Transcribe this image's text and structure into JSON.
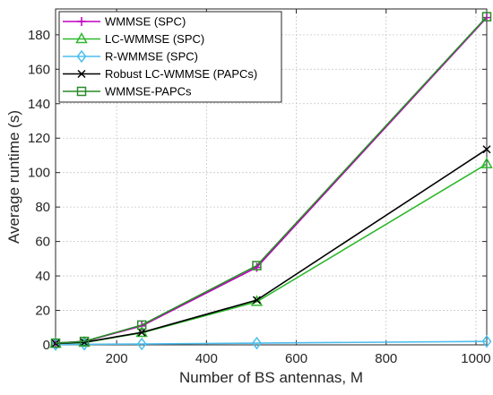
{
  "chart_data": {
    "type": "line",
    "title": "",
    "xlabel": "Number of BS antennas, M",
    "ylabel": "Average runtime (s)",
    "xlim": [
      64,
      1024
    ],
    "ylim": [
      0,
      195
    ],
    "xticks": [
      200,
      400,
      600,
      800,
      1000
    ],
    "yticks": [
      0,
      20,
      40,
      60,
      80,
      100,
      120,
      140,
      160,
      180
    ],
    "grid": true,
    "legend_position": "top-left",
    "x": [
      64,
      128,
      256,
      512,
      1024
    ],
    "series": [
      {
        "name": "WMMSE (SPC)",
        "color": "#c000c0",
        "marker": "plus",
        "values": [
          1.0,
          2.0,
          11.0,
          45.0,
          190.0
        ]
      },
      {
        "name": "LC-WMMSE (SPC)",
        "color": "#2eb82e",
        "marker": "triangle",
        "values": [
          0.7,
          1.3,
          7.0,
          25.0,
          105.0
        ]
      },
      {
        "name": "R-WMMSE (SPC)",
        "color": "#4dbeee",
        "marker": "diamond",
        "values": [
          0.2,
          0.3,
          0.5,
          1.0,
          2.0
        ]
      },
      {
        "name": "Robust LC-WMMSE (PAPCs)",
        "color": "#000000",
        "marker": "x",
        "values": [
          0.8,
          1.5,
          7.2,
          26.0,
          113.5
        ]
      },
      {
        "name": "WMMSE-PAPCs",
        "color": "#2a8a2a",
        "marker": "square",
        "values": [
          1.0,
          2.0,
          11.5,
          46.0,
          190.5
        ]
      }
    ]
  }
}
